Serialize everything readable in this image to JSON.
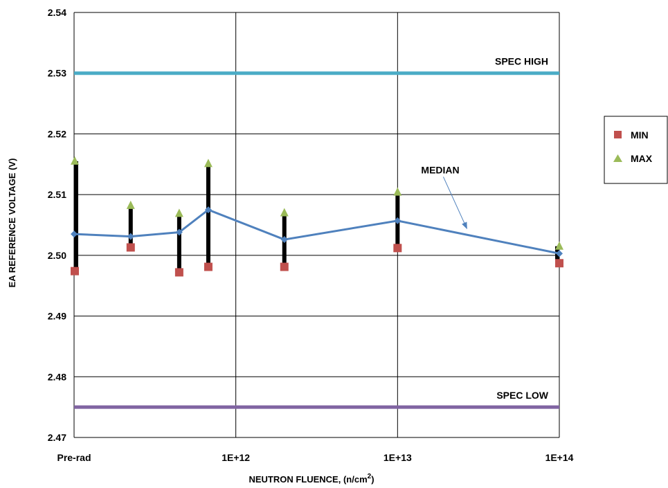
{
  "chart_data": {
    "type": "line",
    "title": "",
    "xlabel": "NEUTRON FLUENCE, (n/cm",
    "xlabel_superscript": "2",
    "xlabel_suffix": ")",
    "ylabel": "EA REFERENCE VOLTAGE (V)",
    "ylim": [
      2.47,
      2.54
    ],
    "y_ticks": [
      "2.47",
      "2.48",
      "2.49",
      "2.50",
      "2.51",
      "2.52",
      "2.53",
      "2.54"
    ],
    "x_ticks": [
      "Pre-rad",
      "1E+12",
      "1E+13",
      "1E+14"
    ],
    "grid": true,
    "legend": {
      "placement": "right",
      "entries": [
        {
          "label": "MIN",
          "marker": "square",
          "color": "#c0504d"
        },
        {
          "label": "MAX",
          "marker": "triangle",
          "color": "#9bbb59"
        }
      ]
    },
    "x_positions": [
      0,
      0.35,
      0.65,
      0.83,
      1.3,
      2.0,
      3.0
    ],
    "series": [
      {
        "name": "MIN",
        "values": [
          2.4974,
          2.5013,
          2.4972,
          2.4981,
          2.4981,
          2.5012,
          2.4987
        ],
        "color": "#c0504d"
      },
      {
        "name": "MAX",
        "values": [
          2.5155,
          2.5082,
          2.5069,
          2.5151,
          2.507,
          2.5104,
          2.5015
        ],
        "color": "#9bbb59"
      },
      {
        "name": "MEDIAN",
        "values": [
          2.5035,
          2.5031,
          2.5038,
          2.5075,
          2.5026,
          2.5057,
          2.5003
        ],
        "color": "#4f81bd"
      }
    ],
    "reference_lines": [
      {
        "label": "SPEC HIGH",
        "value": 2.53,
        "color": "#4bacc6"
      },
      {
        "label": "SPEC LOW",
        "value": 2.475,
        "color": "#8064a2"
      }
    ],
    "annotations": [
      {
        "label": "MEDIAN"
      }
    ]
  }
}
